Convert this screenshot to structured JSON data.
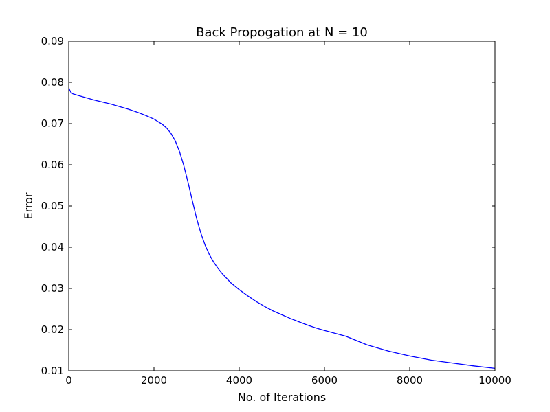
{
  "chart_data": {
    "type": "line",
    "title": "Back Propogation at N = 10",
    "xlabel": "No. of Iterations",
    "ylabel": "Error",
    "xlim": [
      0,
      10000
    ],
    "ylim": [
      0.01,
      0.09
    ],
    "xticks": [
      0,
      2000,
      4000,
      6000,
      8000,
      10000
    ],
    "xtick_labels": [
      "0",
      "2000",
      "4000",
      "6000",
      "8000",
      "10000"
    ],
    "yticks": [
      0.01,
      0.02,
      0.03,
      0.04,
      0.05,
      0.06,
      0.07,
      0.08,
      0.09
    ],
    "ytick_labels": [
      "0.01",
      "0.02",
      "0.03",
      "0.04",
      "0.05",
      "0.06",
      "0.07",
      "0.08",
      "0.09"
    ],
    "grid": false,
    "legend": "none",
    "series": [
      {
        "color": "#0000ff",
        "x": [
          0,
          20,
          50,
          100,
          200,
          400,
          600,
          800,
          1000,
          1200,
          1400,
          1600,
          1800,
          2000,
          2200,
          2300,
          2400,
          2500,
          2600,
          2700,
          2800,
          2900,
          3000,
          3100,
          3200,
          3300,
          3400,
          3500,
          3600,
          3800,
          4000,
          4200,
          4400,
          4600,
          4800,
          5000,
          5200,
          5400,
          5600,
          5800,
          6000,
          6500,
          7000,
          7500,
          8000,
          8500,
          9000,
          9500,
          10000
        ],
        "y": [
          0.0788,
          0.0782,
          0.0776,
          0.0772,
          0.0769,
          0.0763,
          0.0757,
          0.0752,
          0.0747,
          0.0741,
          0.0735,
          0.0728,
          0.072,
          0.0711,
          0.0698,
          0.0689,
          0.0676,
          0.0658,
          0.0632,
          0.0598,
          0.0557,
          0.0513,
          0.047,
          0.0434,
          0.0405,
          0.0382,
          0.0364,
          0.0349,
          0.0336,
          0.0314,
          0.0297,
          0.0282,
          0.0268,
          0.0256,
          0.0245,
          0.0236,
          0.0227,
          0.0219,
          0.0211,
          0.0204,
          0.0198,
          0.0184,
          0.0163,
          0.0148,
          0.0136,
          0.0126,
          0.0119,
          0.0112,
          0.0106
        ]
      }
    ]
  }
}
